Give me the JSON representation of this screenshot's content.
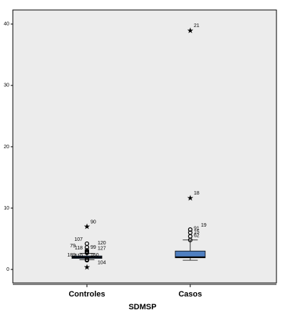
{
  "chart_data": {
    "type": "box",
    "x_label": "SDMSP",
    "categories": [
      "Controles",
      "Casos"
    ],
    "color": "#4f7fc0",
    "boxes": [
      {
        "min": 1.6,
        "q1": 1.8,
        "median": 2.0,
        "q3": 2.2,
        "max": 2.6
      },
      {
        "min": 1.5,
        "q1": 1.9,
        "median": 2.0,
        "q3": 3.0,
        "max": 4.8
      }
    ],
    "outliers": [
      [
        {
          "label": "90",
          "value": 7.0,
          "marker": "star"
        },
        {
          "label": "107",
          "value": 4.2,
          "marker": "circle"
        },
        {
          "label": "120",
          "value": 3.6,
          "marker": "circle"
        },
        {
          "label": "79",
          "value": 3.1,
          "marker": "circle"
        },
        {
          "label": "99",
          "value": 2.9,
          "marker": "circle"
        },
        {
          "label": "118",
          "value": 2.8,
          "marker": "circle"
        },
        {
          "label": "127",
          "value": 2.7,
          "marker": "circle"
        },
        {
          "label": "189",
          "value": 1.6,
          "marker": "circle"
        },
        {
          "label": "160",
          "value": 1.6,
          "marker": "circle"
        },
        {
          "label": "110",
          "value": 1.5,
          "marker": "circle"
        },
        {
          "label": "104",
          "value": 0.4,
          "marker": "star"
        }
      ],
      [
        {
          "label": "21",
          "value": 39.0,
          "marker": "star"
        },
        {
          "label": "18",
          "value": 11.7,
          "marker": "star"
        },
        {
          "label": "19",
          "value": 6.5,
          "marker": "circle"
        },
        {
          "label": "91",
          "value": 6.0,
          "marker": "circle"
        },
        {
          "label": "15",
          "value": 5.4,
          "marker": "circle"
        },
        {
          "label": "62",
          "value": 4.8,
          "marker": "circle"
        }
      ]
    ],
    "ylim": [
      -2.2,
      42.3
    ],
    "yticks": [
      0,
      10,
      20,
      30,
      40
    ]
  }
}
